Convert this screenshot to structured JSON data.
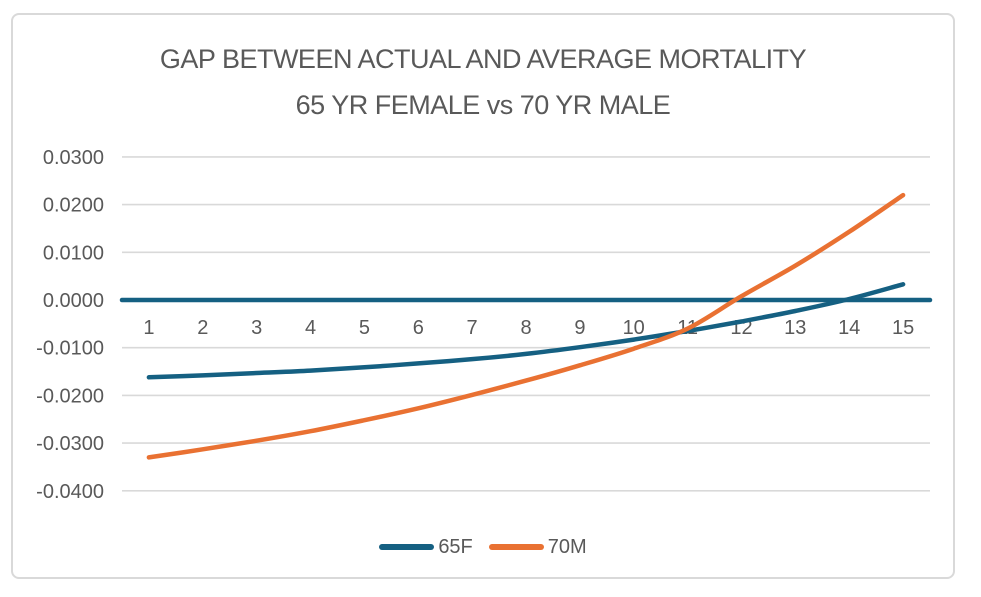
{
  "chart": {
    "title_line1": "GAP BETWEEN ACTUAL AND AVERAGE MORTALITY",
    "title_line2": "65 YR FEMALE vs 70 YR MALE"
  },
  "colors": {
    "series_65f": "#156082",
    "series_70m": "#E97132",
    "zero_baseline": "#156082",
    "gridline": "#D9D9D9",
    "axis_text": "#595959",
    "title_text": "#595959",
    "frame_border": "#D9D9D9",
    "background": "#FFFFFF"
  },
  "legend": {
    "items": [
      {
        "label": "65F",
        "color": "#156082"
      },
      {
        "label": "70M",
        "color": "#E97132"
      }
    ]
  },
  "chart_data": {
    "type": "line",
    "title": "GAP BETWEEN ACTUAL AND AVERAGE MORTALITY 65 YR FEMALE vs 70 YR MALE",
    "xlabel": "",
    "ylabel": "",
    "categories": [
      "1",
      "2",
      "3",
      "4",
      "5",
      "6",
      "7",
      "8",
      "9",
      "10",
      "11",
      "12",
      "13",
      "14",
      "15"
    ],
    "series": [
      {
        "name": "65F",
        "color": "#156082",
        "values": [
          -0.0162,
          -0.0158,
          -0.0153,
          -0.0148,
          -0.0141,
          -0.0133,
          -0.0124,
          -0.0113,
          -0.0099,
          -0.0083,
          -0.0065,
          -0.0045,
          -0.0023,
          0.0002,
          0.0033
        ]
      },
      {
        "name": "70M",
        "color": "#E97132",
        "values": [
          -0.033,
          -0.0313,
          -0.0295,
          -0.0275,
          -0.0252,
          -0.0227,
          -0.0199,
          -0.0169,
          -0.0137,
          -0.0102,
          -0.006,
          0.0008,
          0.0072,
          0.0143,
          0.022
        ]
      }
    ],
    "y_axis": {
      "min": -0.04,
      "max": 0.03,
      "tick_step": 0.01,
      "ticks": [
        {
          "label": "0.0300",
          "value": 0.03
        },
        {
          "label": "0.0200",
          "value": 0.02
        },
        {
          "label": "0.0100",
          "value": 0.01
        },
        {
          "label": "0.0000",
          "value": 0.0
        },
        {
          "label": "-0.0100",
          "value": -0.01
        },
        {
          "label": "-0.0200",
          "value": -0.02
        },
        {
          "label": "-0.0300",
          "value": -0.03
        },
        {
          "label": "-0.0400",
          "value": -0.04
        }
      ]
    },
    "zero_baseline": true,
    "grid": "horizontal",
    "legend_position": "bottom",
    "smooth_lines": true
  }
}
